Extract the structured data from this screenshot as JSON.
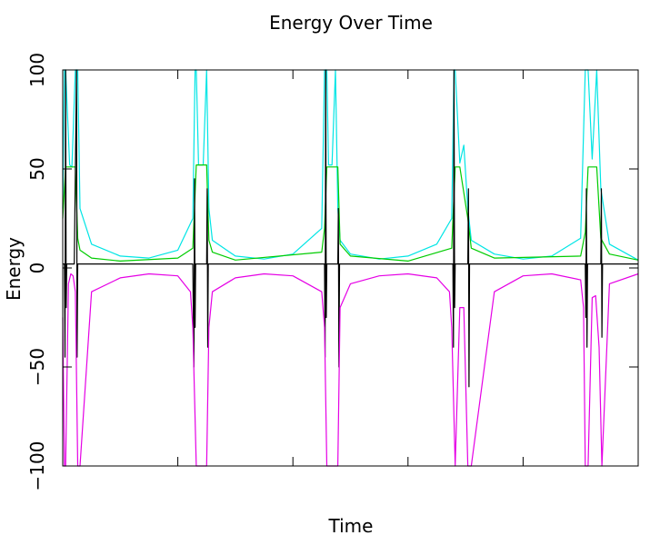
{
  "chart_data": {
    "type": "line",
    "title": "Energy Over Time",
    "xlabel": "Time",
    "ylabel": "Energy",
    "ylim": [
      -100,
      100
    ],
    "yticks": [
      {
        "value": -100,
        "label": "−100"
      },
      {
        "value": -50,
        "label": "−50"
      },
      {
        "value": 0,
        "label": "0"
      },
      {
        "value": 50,
        "label": "50"
      },
      {
        "value": 100,
        "label": "100"
      }
    ],
    "xlim": [
      0,
      1
    ],
    "xticks_unlabeled": [
      0.2,
      0.4,
      0.6,
      0.8
    ],
    "grid": false,
    "legend": "none",
    "period_starts": [
      0.005,
      0.232,
      0.459,
      0.682,
      0.913
    ],
    "series": [
      {
        "key": "cyan",
        "color": "#00e5e5",
        "spikes_up": true,
        "baseline": 4,
        "x": [
          0.0,
          0.003,
          0.005,
          0.012,
          0.016,
          0.022,
          0.026,
          0.03,
          0.05,
          0.1,
          0.15,
          0.2,
          0.226,
          0.23,
          0.232,
          0.236,
          0.244,
          0.25,
          0.254,
          0.26,
          0.3,
          0.35,
          0.4,
          0.45,
          0.455,
          0.459,
          0.462,
          0.468,
          0.474,
          0.478,
          0.482,
          0.5,
          0.55,
          0.6,
          0.65,
          0.676,
          0.68,
          0.682,
          0.69,
          0.697,
          0.704,
          0.71,
          0.75,
          0.8,
          0.85,
          0.9,
          0.908,
          0.912,
          0.913,
          0.92,
          0.928,
          0.935,
          0.95,
          1.0
        ],
        "y": [
          30,
          100,
          100,
          52,
          51,
          100,
          100,
          30,
          12,
          6,
          5,
          9,
          25,
          100,
          100,
          52,
          52,
          100,
          30,
          14,
          6,
          4.5,
          7,
          20,
          100,
          100,
          52,
          52,
          100,
          30,
          14,
          7,
          4.5,
          6,
          12,
          25,
          100,
          100,
          53,
          62,
          30,
          14,
          7,
          4.5,
          6,
          15,
          100,
          100,
          100,
          55,
          100,
          40,
          12,
          4
        ]
      },
      {
        "key": "green",
        "color": "#00cc00",
        "spikes_up": false,
        "baseline": 3,
        "x": [
          0.0,
          0.005,
          0.012,
          0.022,
          0.026,
          0.03,
          0.05,
          0.1,
          0.2,
          0.226,
          0.232,
          0.24,
          0.25,
          0.254,
          0.26,
          0.3,
          0.45,
          0.455,
          0.459,
          0.468,
          0.478,
          0.482,
          0.5,
          0.6,
          0.676,
          0.682,
          0.69,
          0.704,
          0.71,
          0.75,
          0.9,
          0.908,
          0.913,
          0.92,
          0.928,
          0.935,
          0.95,
          1.0
        ],
        "y": [
          25,
          51,
          51,
          51,
          15,
          9,
          5,
          3.5,
          5,
          10,
          52,
          52,
          52,
          14,
          8,
          4,
          8,
          20,
          51,
          51,
          51,
          12,
          6,
          3.5,
          10,
          51,
          51,
          25,
          10,
          5,
          6,
          18,
          51,
          51,
          51,
          15,
          7,
          4
        ]
      },
      {
        "key": "black",
        "color": "#000000",
        "spikes_up": false,
        "baseline": 2,
        "x": [
          0.0,
          0.003,
          0.004,
          0.005,
          0.006,
          0.007,
          0.02,
          0.024,
          0.025,
          0.026,
          0.03,
          0.226,
          0.228,
          0.229,
          0.23,
          0.231,
          0.25,
          0.251,
          0.252,
          0.253,
          0.26,
          0.455,
          0.456,
          0.457,
          0.458,
          0.459,
          0.478,
          0.479,
          0.48,
          0.481,
          0.49,
          0.678,
          0.679,
          0.68,
          0.681,
          0.682,
          0.704,
          0.705,
          0.706,
          0.707,
          0.71,
          0.908,
          0.909,
          0.91,
          0.911,
          0.912,
          0.935,
          0.936,
          0.937,
          0.938,
          0.94,
          1.0
        ],
        "y": [
          2,
          2,
          -45,
          100,
          -20,
          2,
          2,
          100,
          -45,
          2,
          2,
          2,
          -50,
          45,
          -30,
          2,
          2,
          40,
          -40,
          2,
          2,
          2,
          -45,
          100,
          -25,
          2,
          2,
          30,
          -50,
          2,
          2,
          2,
          -40,
          100,
          -20,
          2,
          2,
          40,
          -60,
          2,
          2,
          2,
          -25,
          40,
          -40,
          2,
          2,
          40,
          -35,
          2,
          2,
          2
        ]
      },
      {
        "key": "magenta",
        "color": "#e500e5",
        "spikes_up": false,
        "baseline": -3,
        "x": [
          0.0,
          0.003,
          0.005,
          0.01,
          0.014,
          0.018,
          0.022,
          0.026,
          0.03,
          0.05,
          0.1,
          0.15,
          0.2,
          0.222,
          0.226,
          0.232,
          0.24,
          0.25,
          0.254,
          0.26,
          0.3,
          0.35,
          0.4,
          0.45,
          0.455,
          0.459,
          0.465,
          0.472,
          0.478,
          0.482,
          0.5,
          0.55,
          0.6,
          0.65,
          0.672,
          0.676,
          0.682,
          0.69,
          0.697,
          0.704,
          0.71,
          0.75,
          0.8,
          0.85,
          0.9,
          0.905,
          0.908,
          0.913,
          0.92,
          0.926,
          0.932,
          0.937,
          0.95,
          1.0
        ],
        "y": [
          -25,
          -100,
          -100,
          -8,
          -3,
          -4,
          -12,
          -100,
          -100,
          -12,
          -5,
          -3,
          -4,
          -12,
          -30,
          -100,
          -100,
          -100,
          -30,
          -12,
          -5,
          -3,
          -4,
          -12,
          -30,
          -100,
          -100,
          -100,
          -100,
          -20,
          -8,
          -4,
          -3,
          -5,
          -12,
          -30,
          -100,
          -20,
          -20,
          -100,
          -100,
          -12,
          -4,
          -3,
          -6,
          -20,
          -100,
          -100,
          -15,
          -14,
          -40,
          -100,
          -8,
          -3
        ]
      }
    ]
  }
}
